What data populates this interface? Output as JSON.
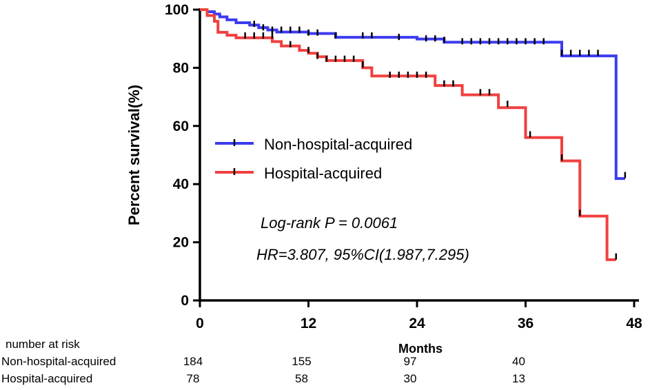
{
  "chart_data": {
    "type": "line",
    "subtype": "kaplan-meier",
    "xlabel": "Months",
    "ylabel": "Percent survival(%)",
    "xlim": [
      0,
      48
    ],
    "ylim": [
      0,
      100
    ],
    "xticks": [
      "0",
      "12",
      "24",
      "36",
      "48"
    ],
    "yticks": [
      "0",
      "20",
      "40",
      "60",
      "80",
      "100"
    ],
    "legend_position": "center-left",
    "series": [
      {
        "name": "Non-hospital-acquired",
        "color": "#3b3bf0",
        "steps": [
          [
            0,
            100
          ],
          [
            0.8,
            99.3
          ],
          [
            1.6,
            98.5
          ],
          [
            2.2,
            97.5
          ],
          [
            3,
            96.5
          ],
          [
            4,
            95.5
          ],
          [
            5.5,
            94.7
          ],
          [
            6.5,
            93.8
          ],
          [
            7.5,
            93
          ],
          [
            8.5,
            92.3
          ],
          [
            12,
            91.8
          ],
          [
            15,
            90.5
          ],
          [
            19,
            90.5
          ],
          [
            24,
            89.9
          ],
          [
            27,
            88.8
          ],
          [
            40,
            84.1
          ],
          [
            46,
            84.1
          ],
          [
            46,
            41.9
          ],
          [
            47,
            41.9
          ]
        ],
        "censors": [
          [
            6,
            95
          ],
          [
            7,
            93.8
          ],
          [
            8,
            93
          ],
          [
            9,
            93
          ],
          [
            10,
            93
          ],
          [
            11,
            93
          ],
          [
            12,
            92
          ],
          [
            13,
            92
          ],
          [
            15,
            91
          ],
          [
            18,
            91
          ],
          [
            19,
            91
          ],
          [
            22,
            90.5
          ],
          [
            25,
            90
          ],
          [
            26,
            90
          ],
          [
            27,
            89.5
          ],
          [
            29,
            89
          ],
          [
            30,
            89
          ],
          [
            31,
            89
          ],
          [
            32,
            89
          ],
          [
            33,
            89
          ],
          [
            34,
            89
          ],
          [
            35,
            89
          ],
          [
            36,
            89
          ],
          [
            37,
            89
          ],
          [
            38,
            89
          ],
          [
            40,
            85
          ],
          [
            41,
            85
          ],
          [
            42,
            85
          ],
          [
            43,
            85
          ],
          [
            44,
            85
          ],
          [
            47,
            43
          ]
        ]
      },
      {
        "name": "Hospital-acquired",
        "color": "#f04040",
        "steps": [
          [
            0,
            100
          ],
          [
            0.8,
            98
          ],
          [
            1.6,
            96
          ],
          [
            2,
            92.2
          ],
          [
            3,
            91.2
          ],
          [
            4,
            90.3
          ],
          [
            8,
            89
          ],
          [
            9,
            87.5
          ],
          [
            11,
            86
          ],
          [
            12,
            85
          ],
          [
            13,
            83.8
          ],
          [
            14,
            82.5
          ],
          [
            18,
            80
          ],
          [
            19,
            77.2
          ],
          [
            26,
            73.9
          ],
          [
            29,
            70.7
          ],
          [
            33,
            66.3
          ],
          [
            36,
            56
          ],
          [
            40,
            48
          ],
          [
            42,
            29
          ],
          [
            45,
            14
          ],
          [
            46,
            14
          ]
        ],
        "censors": [
          [
            5,
            91
          ],
          [
            6,
            91
          ],
          [
            7,
            91
          ],
          [
            8,
            91
          ],
          [
            10,
            88
          ],
          [
            12,
            86
          ],
          [
            13,
            84
          ],
          [
            14,
            83
          ],
          [
            15,
            83
          ],
          [
            16,
            83
          ],
          [
            17,
            83
          ],
          [
            18,
            81
          ],
          [
            21,
            77.5
          ],
          [
            22,
            77.5
          ],
          [
            23,
            77.5
          ],
          [
            24,
            77.5
          ],
          [
            25,
            77.5
          ],
          [
            27,
            74.5
          ],
          [
            28,
            74.5
          ],
          [
            31,
            71.5
          ],
          [
            32,
            71.5
          ],
          [
            34,
            67.5
          ],
          [
            36.5,
            57
          ],
          [
            40,
            49
          ],
          [
            42,
            30
          ],
          [
            46,
            15
          ]
        ]
      }
    ],
    "annotations": [
      "Log-rank P = 0.0061",
      "HR=3.807, 95%CI(1.987,7.295)"
    ],
    "risk_table": {
      "title": "number at risk",
      "times": [
        0,
        12,
        24,
        36
      ],
      "rows": [
        {
          "label": "Non-hospital-acquired",
          "values": [
            "184",
            "155",
            "97",
            "40"
          ]
        },
        {
          "label": "Hospital-acquired",
          "values": [
            "78",
            "58",
            "30",
            "13"
          ]
        }
      ]
    }
  }
}
